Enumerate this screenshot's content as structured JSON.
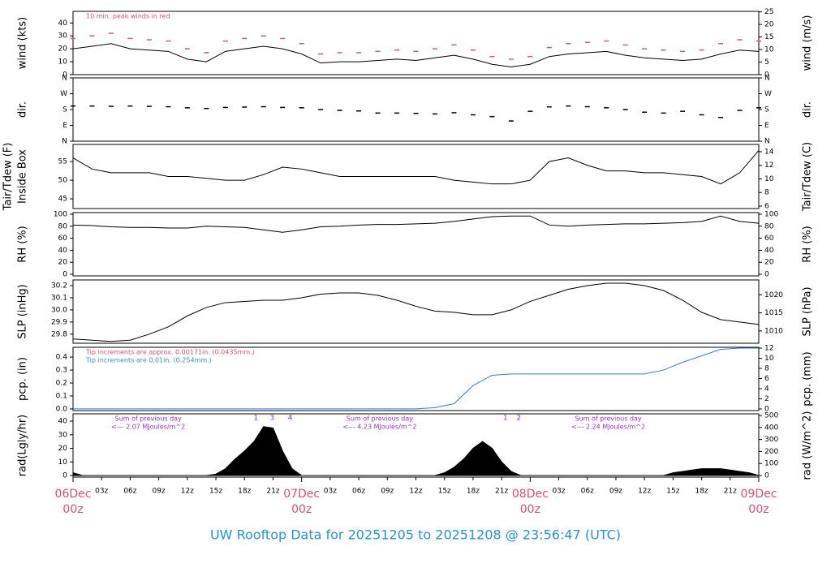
{
  "title": "UW Rooftop Data for 20251205  to  20251208 @ 23:56:47  (UTC)",
  "chart_data": [
    {
      "type": "line",
      "ylabel": "wind (kts)",
      "y2label": "wind (m/s)",
      "annotations": [
        {
          "text": "10 min. peak winds in red",
          "color": "#e0507a"
        }
      ],
      "x": [
        0,
        2,
        4,
        6,
        8,
        10,
        12,
        14,
        16,
        18,
        20,
        22,
        24,
        26,
        28,
        30,
        32,
        34,
        36,
        38,
        40,
        42,
        44,
        46,
        48,
        50,
        52,
        54,
        56,
        58,
        60,
        62,
        64,
        66,
        68,
        70,
        72
      ],
      "xlim": [
        0,
        72
      ],
      "ylim": [
        0,
        49
      ],
      "yticks": [
        0,
        10,
        20,
        30,
        40
      ],
      "y2lim": [
        0,
        25.2
      ],
      "y2ticks": [
        0,
        5,
        10,
        15,
        20,
        25
      ],
      "series": [
        {
          "name": "wind",
          "mark": "line",
          "color": "#000000",
          "values": [
            20,
            22,
            24,
            20,
            19,
            18,
            12,
            10,
            18,
            20,
            22,
            20,
            16,
            9,
            10,
            10,
            11,
            12,
            11,
            13,
            15,
            12,
            8,
            6,
            8,
            14,
            16,
            17,
            18,
            15,
            13,
            12,
            11,
            12,
            16,
            19,
            18
          ]
        },
        {
          "name": "peak",
          "mark": "dash",
          "color": "#e0507a",
          "values": [
            28,
            30,
            32,
            28,
            27,
            26,
            20,
            17,
            26,
            28,
            30,
            28,
            24,
            16,
            17,
            17,
            18,
            19,
            18,
            20,
            23,
            19,
            14,
            12,
            14,
            21,
            24,
            25,
            26,
            23,
            20,
            19,
            18,
            19,
            24,
            27,
            26
          ]
        }
      ]
    },
    {
      "type": "scatter",
      "ylabel": "dir.",
      "y2label": "dir.",
      "x": [
        0,
        2,
        4,
        6,
        8,
        10,
        12,
        14,
        16,
        18,
        20,
        22,
        24,
        26,
        28,
        30,
        32,
        34,
        36,
        38,
        40,
        42,
        44,
        46,
        48,
        50,
        52,
        54,
        56,
        58,
        60,
        62,
        64,
        66,
        68,
        70,
        72
      ],
      "xlim": [
        0,
        72
      ],
      "ylim": [
        0,
        360
      ],
      "yticks": [
        {
          "value": 0,
          "label": "N"
        },
        {
          "value": 90,
          "label": "E"
        },
        {
          "value": 180,
          "label": "S"
        },
        {
          "value": 270,
          "label": "W"
        },
        {
          "value": 360,
          "label": "N"
        }
      ],
      "y2lim": [
        0,
        360
      ],
      "y2ticks": [
        {
          "value": 0,
          "label": "N"
        },
        {
          "value": 90,
          "label": "E"
        },
        {
          "value": 180,
          "label": "S"
        },
        {
          "value": 270,
          "label": "W"
        },
        {
          "value": 360,
          "label": "N"
        }
      ],
      "series": [
        {
          "name": "direction",
          "mark": "dash",
          "color": "#000000",
          "values": [
            200,
            200,
            198,
            200,
            198,
            196,
            190,
            186,
            192,
            194,
            196,
            192,
            190,
            180,
            175,
            172,
            160,
            160,
            158,
            155,
            162,
            150,
            140,
            115,
            170,
            195,
            200,
            196,
            190,
            180,
            165,
            160,
            170,
            150,
            135,
            175,
            190
          ]
        }
      ]
    },
    {
      "type": "line",
      "ylabel": "Tair/Tdew (F)",
      "ylabel_note": "Inside Box",
      "y2label": "Tair/Tdew (C)",
      "x": [
        0,
        2,
        4,
        6,
        8,
        10,
        12,
        14,
        16,
        18,
        20,
        22,
        24,
        26,
        28,
        30,
        32,
        34,
        36,
        38,
        40,
        42,
        44,
        46,
        48,
        50,
        52,
        54,
        56,
        58,
        60,
        62,
        64,
        66,
        68,
        70,
        72
      ],
      "xlim": [
        0,
        72
      ],
      "ylim": [
        42.4,
        59.6
      ],
      "yticks": [
        45,
        50,
        55
      ],
      "y2lim": [
        5.64,
        15.07
      ],
      "y2ticks": [
        6,
        8,
        10,
        12,
        14
      ],
      "series": [
        {
          "name": "Tair",
          "mark": "line",
          "color": "#000000",
          "values": [
            56,
            53,
            52,
            52,
            52,
            51,
            51,
            50.5,
            50,
            50,
            51.5,
            53.5,
            53,
            52,
            51,
            51,
            51,
            51,
            51,
            51,
            50,
            49.5,
            49,
            49,
            50,
            55,
            56,
            54,
            52.5,
            52.5,
            52,
            52,
            51.5,
            51,
            49,
            52,
            58
          ]
        }
      ]
    },
    {
      "type": "line",
      "ylabel": "RH (%)",
      "y2label": "RH (%)",
      "x": [
        0,
        2,
        4,
        6,
        8,
        10,
        12,
        14,
        16,
        18,
        20,
        22,
        24,
        26,
        28,
        30,
        32,
        34,
        36,
        38,
        40,
        42,
        44,
        46,
        48,
        50,
        52,
        54,
        56,
        58,
        60,
        62,
        64,
        66,
        68,
        70,
        72
      ],
      "xlim": [
        0,
        72
      ],
      "ylim": [
        -2.7,
        102.7
      ],
      "yticks": [
        0,
        20,
        40,
        60,
        80,
        100
      ],
      "y2lim": [
        -2.7,
        102.7
      ],
      "y2ticks": [
        0,
        20,
        40,
        60,
        80,
        100
      ],
      "series": [
        {
          "name": "RH",
          "mark": "line",
          "color": "#000000",
          "values": [
            82,
            81,
            79,
            78,
            78,
            77,
            77,
            80,
            79,
            78,
            74,
            70,
            74,
            79,
            80,
            82,
            83,
            83,
            84,
            85,
            88,
            92,
            96,
            97,
            97,
            82,
            80,
            82,
            83,
            84,
            84,
            85,
            86,
            88,
            97,
            88,
            85
          ]
        }
      ]
    },
    {
      "type": "line",
      "ylabel": "SLP (inHg)",
      "y2label": "SLP (hPa)",
      "x": [
        0,
        2,
        4,
        6,
        8,
        10,
        12,
        14,
        16,
        18,
        20,
        22,
        24,
        26,
        28,
        30,
        32,
        34,
        36,
        38,
        40,
        42,
        44,
        46,
        48,
        50,
        52,
        54,
        56,
        58,
        60,
        62,
        64,
        66,
        68,
        70,
        72
      ],
      "xlim": [
        0,
        72
      ],
      "ylim": [
        29.725,
        30.247
      ],
      "yticks": [
        29.8,
        29.9,
        {
          "value": 30.0,
          "label": "30.0"
        },
        30.1,
        30.2
      ],
      "y2lim": [
        1006.6,
        1024.1
      ],
      "y2ticks": [
        1010,
        1015,
        1020
      ],
      "series": [
        {
          "name": "SLP",
          "mark": "line",
          "color": "#000000",
          "values": [
            29.76,
            29.75,
            29.74,
            29.75,
            29.8,
            29.86,
            29.95,
            30.02,
            30.06,
            30.07,
            30.08,
            30.08,
            30.1,
            30.13,
            30.14,
            30.14,
            30.12,
            30.08,
            30.03,
            29.99,
            29.98,
            29.96,
            29.96,
            30.0,
            30.07,
            30.12,
            30.17,
            30.2,
            30.22,
            30.22,
            30.2,
            30.16,
            30.08,
            29.98,
            29.92,
            29.9,
            29.88
          ]
        }
      ]
    },
    {
      "type": "line",
      "ylabel": "pcp. (in)",
      "y2label": "pcp. (mm)",
      "annotations": [
        {
          "text": "Tip increments are approx. 0.00171in. (0.0435mm.)",
          "color": "#e0507a"
        },
        {
          "text": "Tip increments are 0.01in. (0.254mm.)",
          "color": "#3a8fd6"
        }
      ],
      "x": [
        0,
        2,
        4,
        6,
        8,
        10,
        12,
        14,
        16,
        18,
        20,
        22,
        24,
        26,
        28,
        30,
        32,
        34,
        36,
        38,
        40,
        42,
        44,
        46,
        48,
        50,
        52,
        54,
        56,
        58,
        60,
        62,
        64,
        66,
        68,
        70,
        72
      ],
      "xlim": [
        0,
        72
      ],
      "ylim": [
        -0.013,
        0.476
      ],
      "yticks": [
        {
          "value": 0.0,
          "label": "0.0"
        },
        0.1,
        0.2,
        0.3,
        0.4
      ],
      "y2lim": [
        -0.32,
        12.16
      ],
      "y2ticks": [
        0,
        2,
        4,
        6,
        8,
        10,
        12
      ],
      "series": [
        {
          "name": "precip",
          "mark": "line",
          "color": "#3a7bd5",
          "values": [
            0,
            0,
            0,
            0,
            0,
            0,
            0,
            0,
            0,
            0,
            0,
            0,
            0,
            0,
            0,
            0,
            0,
            0,
            0,
            0.01,
            0.04,
            0.18,
            0.26,
            0.27,
            0.27,
            0.27,
            0.27,
            0.27,
            0.27,
            0.27,
            0.27,
            0.3,
            0.36,
            0.41,
            0.46,
            0.47,
            0.47
          ]
        }
      ]
    },
    {
      "type": "area",
      "ylabel": "rad(Lgly/hr)",
      "y2label": "rad (W/m^2)",
      "x": [
        0,
        1,
        2,
        3,
        4,
        5,
        6,
        7,
        8,
        9,
        10,
        11,
        12,
        13,
        14,
        15,
        16,
        17,
        18,
        19,
        20,
        21,
        22,
        23,
        24,
        25,
        26,
        27,
        28,
        29,
        30,
        31,
        32,
        33,
        34,
        35,
        36,
        37,
        38,
        39,
        40,
        41,
        42,
        43,
        44,
        45,
        46,
        47,
        48,
        49,
        50,
        51,
        52,
        53,
        54,
        55,
        56,
        57,
        58,
        59,
        60,
        61,
        62,
        63,
        64,
        65,
        66,
        67,
        68,
        69,
        70,
        71,
        72
      ],
      "xlim": [
        0,
        72
      ],
      "ylim": [
        -1.2,
        45.4
      ],
      "yticks": [
        0,
        10,
        20,
        30,
        40
      ],
      "y2lim": [
        -13.5,
        513.5
      ],
      "y2ticks": [
        0,
        100,
        200,
        300,
        400,
        500
      ],
      "series": [
        {
          "name": "radiation",
          "mark": "area",
          "color": "#000000",
          "values": [
            2,
            0,
            0,
            0,
            0,
            0,
            0,
            0,
            0,
            0,
            0,
            0,
            0,
            0,
            0,
            1,
            5,
            12,
            18,
            25,
            36,
            35,
            18,
            5,
            0,
            0,
            0,
            0,
            0,
            0,
            0,
            0,
            0,
            0,
            0,
            0,
            0,
            0,
            0,
            2,
            6,
            12,
            20,
            25,
            20,
            10,
            3,
            0,
            0,
            0,
            0,
            0,
            0,
            0,
            0,
            0,
            0,
            0,
            0,
            0,
            0,
            0,
            0,
            2,
            3,
            4,
            5,
            5,
            5,
            4,
            3,
            2,
            0
          ]
        }
      ],
      "day_sums": [
        {
          "x": 7.9,
          "lines": [
            "Sum of previous day",
            "<--- 2.07 MJoules/m^2"
          ]
        },
        {
          "x": 32.2,
          "lines": [
            "Sum of previous day",
            "<--- 4.23 MJoules/m^2"
          ]
        },
        {
          "x": 56.2,
          "lines": [
            "Sum of previous day",
            "<--- 2.24 MJoules/m^2"
          ]
        }
      ],
      "peak_labels": [
        {
          "x": 19.2,
          "label": "1"
        },
        {
          "x": 20.9,
          "label": "3"
        },
        {
          "x": 22.8,
          "label": "4"
        },
        {
          "x": 45.4,
          "label": "1"
        },
        {
          "x": 46.8,
          "label": "2"
        }
      ],
      "xticks": [
        {
          "value": 3,
          "label": "03z"
        },
        {
          "value": 6,
          "label": "06z"
        },
        {
          "value": 9,
          "label": "09z"
        },
        {
          "value": 12,
          "label": "12z"
        },
        {
          "value": 15,
          "label": "15z"
        },
        {
          "value": 18,
          "label": "18z"
        },
        {
          "value": 21,
          "label": "21z"
        },
        {
          "value": 27,
          "label": "03z"
        },
        {
          "value": 30,
          "label": "06z"
        },
        {
          "value": 33,
          "label": "09z"
        },
        {
          "value": 36,
          "label": "12z"
        },
        {
          "value": 39,
          "label": "15z"
        },
        {
          "value": 42,
          "label": "18z"
        },
        {
          "value": 45,
          "label": "21z"
        },
        {
          "value": 51,
          "label": "03z"
        },
        {
          "value": 54,
          "label": "06z"
        },
        {
          "value": 57,
          "label": "09z"
        },
        {
          "value": 60,
          "label": "12z"
        },
        {
          "value": 63,
          "label": "15z"
        },
        {
          "value": 66,
          "label": "18z"
        },
        {
          "value": 69,
          "label": "21z"
        }
      ],
      "day_ticks": [
        {
          "value": 0,
          "label": "06Dec",
          "sublabel": "00z"
        },
        {
          "value": 24,
          "label": "07Dec",
          "sublabel": "00z"
        },
        {
          "value": 48,
          "label": "08Dec",
          "sublabel": "00z"
        },
        {
          "value": 72,
          "label": "09Dec",
          "sublabel": "00z"
        }
      ]
    }
  ]
}
